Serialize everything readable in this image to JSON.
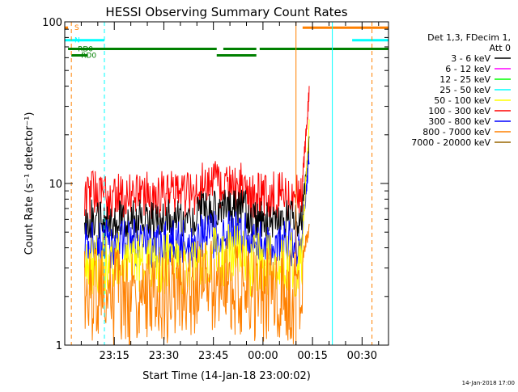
{
  "chart_data": {
    "type": "line",
    "title": "HESSI Observing Summary Count Rates",
    "xlabel": "Start Time (14-Jan-18 23:00:02)",
    "ylabel": "Count Rate (s⁻¹ detector⁻¹)",
    "yscale": "log",
    "ylim": [
      1,
      100
    ],
    "xlim_minutes": [
      0,
      98
    ],
    "x_ticks": [
      {
        "minute": 15,
        "label": "23:15"
      },
      {
        "minute": 30,
        "label": "23:30"
      },
      {
        "minute": 45,
        "label": "23:45"
      },
      {
        "minute": 60,
        "label": "00:00"
      },
      {
        "minute": 75,
        "label": "00:15"
      },
      {
        "minute": 90,
        "label": "00:30"
      }
    ],
    "y_ticks": [
      {
        "value": 1,
        "label": "1"
      },
      {
        "value": 10,
        "label": "10"
      },
      {
        "value": 100,
        "label": "100"
      }
    ],
    "legend": {
      "header": [
        "Det 1,3, FDecim 1,",
        "Att 0"
      ],
      "entries": [
        {
          "label": "3 - 6 keV",
          "color": "#000000"
        },
        {
          "label": "6 - 12 keV",
          "color": "#ff00ff"
        },
        {
          "label": "12 - 25 keV",
          "color": "#00ff00"
        },
        {
          "label": "25 - 50 keV",
          "color": "#00ffff"
        },
        {
          "label": "50 - 100 keV",
          "color": "#ffff00"
        },
        {
          "label": "100 - 300 keV",
          "color": "#ff0000"
        },
        {
          "label": "300 - 800 keV",
          "color": "#0000ff"
        },
        {
          "label": "800 - 7000 keV",
          "color": "#ff8000"
        },
        {
          "label": "7000 - 20000 keV",
          "color": "#996600"
        }
      ]
    },
    "series_levels": [
      {
        "band": "100 - 300 keV",
        "color": "#ff0000",
        "pre_flare_range": [
          6,
          12
        ],
        "peak": 37
      },
      {
        "band": "3 - 6 keV",
        "color": "#000000",
        "pre_flare_range": [
          4.5,
          8
        ],
        "peak": 18
      },
      {
        "band": "300 - 800 keV",
        "color": "#0000ff",
        "pre_flare_range": [
          3,
          6
        ],
        "peak": 15
      },
      {
        "band": "50 - 100 keV",
        "color": "#ffff00",
        "pre_flare_range": [
          2,
          5
        ],
        "peak": 25
      },
      {
        "band": "800 - 7000 keV",
        "color": "#ff8000",
        "pre_flare_range": [
          1,
          4
        ],
        "peak": 5
      }
    ],
    "flare_start_minute": 72,
    "flag_labels": {
      "saa": "S",
      "night": "N",
      "rad1": "RD0",
      "rad2": "RD0"
    },
    "flags": [
      {
        "name": "saa",
        "label_key": "saa",
        "color": "#ff8000",
        "value": 92,
        "segments": [
          [
            0,
            1
          ],
          [
            72,
            98
          ]
        ]
      },
      {
        "name": "night",
        "label_key": "night",
        "color": "#00ffff",
        "value": 77,
        "segments": [
          [
            0,
            12
          ],
          [
            87,
            98
          ]
        ]
      },
      {
        "name": "rad1",
        "label_key": "rad1",
        "color": "#008000",
        "value": 68,
        "segments": [
          [
            1,
            46
          ],
          [
            48,
            58
          ],
          [
            59,
            98
          ]
        ]
      },
      {
        "name": "rad2",
        "label_key": "rad2",
        "color": "#008000",
        "value": 62,
        "segments": [
          [
            2,
            7
          ],
          [
            46,
            58
          ]
        ]
      }
    ],
    "vertical_markers": [
      {
        "minute": 0,
        "color": "#00ffff",
        "style": "solid"
      },
      {
        "minute": 2,
        "color": "#ff8000",
        "style": "dashed"
      },
      {
        "minute": 12,
        "color": "#00ffff",
        "style": "dashed"
      },
      {
        "minute": 70,
        "color": "#ff8000",
        "style": "solid"
      },
      {
        "minute": 81,
        "color": "#00ffff",
        "style": "solid"
      },
      {
        "minute": 93,
        "color": "#ff8000",
        "style": "dashed"
      }
    ]
  },
  "footer_date": "14-Jan-2018 17:00"
}
